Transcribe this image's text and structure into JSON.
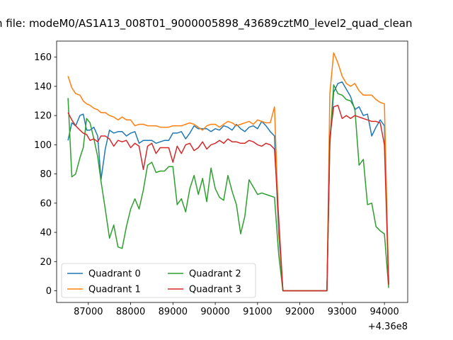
{
  "chart_data": {
    "type": "line",
    "title": "n file: modeM0/AS1A13_008T01_9000005898_43689cztM0_level2_quad_clean",
    "x_offset_label": "+4.36e8",
    "xlim": [
      86250,
      94550
    ],
    "ylim": [
      -8,
      171
    ],
    "xticks": [
      87000,
      88000,
      89000,
      90000,
      91000,
      92000,
      93000,
      94000
    ],
    "yticks": [
      0,
      20,
      40,
      60,
      80,
      100,
      120,
      140,
      160
    ],
    "grid": false,
    "legend_placement": "lower-left",
    "legend_columns": 2,
    "series": [
      {
        "name": "Quadrant 0",
        "color": "#1f77b4",
        "x": [
          86520,
          86610,
          86700,
          86800,
          86880,
          86960,
          87040,
          87130,
          87220,
          87300,
          87400,
          87500,
          87600,
          87700,
          87800,
          87900,
          88000,
          88100,
          88200,
          88300,
          88400,
          88500,
          88600,
          88700,
          88800,
          88900,
          89000,
          89100,
          89200,
          89300,
          89400,
          89500,
          89600,
          89700,
          89800,
          89900,
          90000,
          90100,
          90200,
          90300,
          90400,
          90500,
          90600,
          90700,
          90800,
          90900,
          91000,
          91100,
          91200,
          91300,
          91400,
          91500,
          91600,
          91700,
          92000,
          92300,
          92640,
          92710,
          92800,
          92900,
          93000,
          93100,
          93200,
          93300,
          93400,
          93500,
          93600,
          93700,
          93800,
          93900,
          94000,
          94100
        ],
        "y": [
          103,
          115,
          113,
          120,
          121,
          110,
          110,
          112,
          106,
          76,
          97,
          110,
          108,
          109,
          109,
          106,
          108,
          109,
          101,
          103,
          103,
          103,
          101,
          102,
          103,
          103,
          108,
          108,
          109,
          104,
          108,
          113,
          111,
          111,
          111,
          109,
          111,
          110,
          113,
          112,
          110,
          114,
          111,
          109,
          112,
          113,
          111,
          116,
          113,
          109,
          106,
          40,
          0,
          0,
          0,
          0,
          0,
          100,
          136,
          142,
          143,
          138,
          133,
          124,
          126,
          120,
          121,
          106,
          112,
          117,
          113,
          5
        ]
      },
      {
        "name": "Quadrant 1",
        "color": "#ff7f0e",
        "x": [
          86520,
          86610,
          86700,
          86800,
          86880,
          86960,
          87040,
          87130,
          87220,
          87300,
          87400,
          87500,
          87600,
          87700,
          87800,
          87900,
          88000,
          88100,
          88200,
          88300,
          88400,
          88500,
          88600,
          88700,
          88800,
          88900,
          89000,
          89100,
          89200,
          89300,
          89400,
          89500,
          89600,
          89700,
          89800,
          89900,
          90000,
          90100,
          90200,
          90300,
          90400,
          90500,
          90600,
          90700,
          90800,
          90900,
          91000,
          91100,
          91200,
          91300,
          91400,
          91500,
          91600,
          91700,
          92000,
          92300,
          92640,
          92710,
          92800,
          92900,
          93000,
          93100,
          93200,
          93300,
          93400,
          93500,
          93600,
          93700,
          93800,
          93900,
          94000,
          94100
        ],
        "y": [
          147,
          139,
          135,
          134,
          130,
          128,
          127,
          125,
          124,
          122,
          122,
          120,
          119,
          117,
          119,
          117,
          117,
          113,
          114,
          114,
          113,
          113,
          113,
          112,
          112,
          112,
          113,
          113,
          113,
          114,
          115,
          114,
          112,
          110,
          113,
          114,
          114,
          112,
          114,
          116,
          115,
          113,
          114,
          115,
          116,
          114,
          117,
          116,
          115,
          115,
          126,
          45,
          0,
          0,
          0,
          0,
          0,
          135,
          163,
          156,
          147,
          142,
          140,
          142,
          137,
          134,
          134,
          134,
          131,
          129,
          128,
          5
        ]
      },
      {
        "name": "Quadrant 2",
        "color": "#2ca02c",
        "x": [
          86520,
          86610,
          86700,
          86800,
          86880,
          86960,
          87040,
          87130,
          87220,
          87300,
          87400,
          87500,
          87600,
          87700,
          87800,
          87900,
          88000,
          88100,
          88200,
          88300,
          88400,
          88500,
          88600,
          88700,
          88800,
          88900,
          89000,
          89100,
          89200,
          89300,
          89400,
          89500,
          89600,
          89700,
          89800,
          89900,
          90000,
          90100,
          90200,
          90300,
          90400,
          90500,
          90600,
          90700,
          90800,
          90900,
          91000,
          91100,
          91200,
          91300,
          91400,
          91500,
          91600,
          91700,
          92000,
          92300,
          92640,
          92710,
          92800,
          92900,
          93000,
          93100,
          93200,
          93300,
          93400,
          93500,
          93600,
          93700,
          93800,
          93900,
          94000,
          94100
        ],
        "y": [
          132,
          78,
          80,
          91,
          98,
          118,
          115,
          104,
          92,
          75,
          56,
          36,
          45,
          30,
          29,
          44,
          56,
          63,
          56,
          69,
          86,
          88,
          81,
          82,
          82,
          85,
          85,
          59,
          63,
          54,
          70,
          79,
          66,
          77,
          61,
          84,
          70,
          64,
          62,
          79,
          68,
          59,
          39,
          51,
          76,
          71,
          66,
          67,
          66,
          65,
          64,
          25,
          0,
          0,
          0,
          0,
          0,
          102,
          141,
          135,
          134,
          131,
          130,
          125,
          86,
          90,
          59,
          60,
          44,
          41,
          39,
          2
        ]
      },
      {
        "name": "Quadrant 3",
        "color": "#d62728",
        "x": [
          86520,
          86610,
          86700,
          86800,
          86880,
          86960,
          87040,
          87130,
          87220,
          87300,
          87400,
          87500,
          87600,
          87700,
          87800,
          87900,
          88000,
          88100,
          88200,
          88300,
          88400,
          88500,
          88600,
          88700,
          88800,
          88900,
          89000,
          89100,
          89200,
          89300,
          89400,
          89500,
          89600,
          89700,
          89800,
          89900,
          90000,
          90100,
          90200,
          90300,
          90400,
          90500,
          90600,
          90700,
          90800,
          90900,
          91000,
          91100,
          91200,
          91300,
          91400,
          91500,
          91600,
          91700,
          92000,
          92300,
          92640,
          92710,
          92800,
          92900,
          93000,
          93100,
          93200,
          93300,
          93400,
          93500,
          93600,
          93700,
          93800,
          93900,
          94000,
          94100
        ],
        "y": [
          122,
          117,
          113,
          110,
          108,
          107,
          103,
          104,
          102,
          106,
          106,
          104,
          99,
          103,
          102,
          103,
          98,
          101,
          99,
          83,
          99,
          101,
          94,
          98,
          98,
          98,
          88,
          99,
          94,
          100,
          101,
          96,
          98,
          102,
          97,
          100,
          101,
          103,
          101,
          104,
          102,
          102,
          101,
          101,
          103,
          102,
          100,
          99,
          101,
          100,
          97,
          50,
          0,
          0,
          0,
          0,
          0,
          105,
          126,
          127,
          118,
          120,
          118,
          120,
          119,
          118,
          117,
          116,
          116,
          115,
          100,
          4
        ]
      }
    ]
  }
}
